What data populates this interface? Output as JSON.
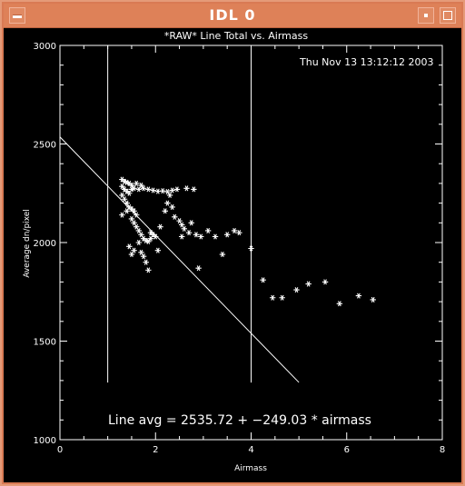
{
  "window": {
    "title": "IDL 0"
  },
  "plot": {
    "timestamp": "Thu Nov 13 13:12:12 2003"
  },
  "chart_data": {
    "type": "scatter",
    "title": "*RAW* Line Total vs. Airmass",
    "xlabel": "Airmass",
    "ylabel": "Average dn/pixel",
    "xlim": [
      0,
      8
    ],
    "ylim": [
      1000,
      3000
    ],
    "xticks": [
      "0",
      "2",
      "4",
      "6",
      "8"
    ],
    "yticks": [
      "1000",
      "1500",
      "2000",
      "2500",
      "3000"
    ],
    "grid": false,
    "marker": "*",
    "fit": {
      "intercept": 2535.72,
      "slope": -249.03,
      "x_range": [
        0,
        5
      ],
      "label": "Line avg = 2535.72 + −249.03 * airmass"
    },
    "vlines": [
      1,
      4
    ],
    "vline_y_range": [
      1290,
      3000
    ],
    "points": [
      [
        1.3,
        2320
      ],
      [
        1.35,
        2310
      ],
      [
        1.4,
        2305
      ],
      [
        1.45,
        2300
      ],
      [
        1.5,
        2290
      ],
      [
        1.6,
        2300
      ],
      [
        1.7,
        2290
      ],
      [
        1.3,
        2285
      ],
      [
        1.35,
        2270
      ],
      [
        1.4,
        2260
      ],
      [
        1.45,
        2250
      ],
      [
        1.5,
        2270
      ],
      [
        1.55,
        2275
      ],
      [
        1.65,
        2270
      ],
      [
        1.75,
        2275
      ],
      [
        1.85,
        2270
      ],
      [
        1.95,
        2265
      ],
      [
        2.05,
        2260
      ],
      [
        2.15,
        2262
      ],
      [
        2.25,
        2258
      ],
      [
        2.35,
        2265
      ],
      [
        2.45,
        2270
      ],
      [
        2.65,
        2275
      ],
      [
        2.8,
        2270
      ],
      [
        1.3,
        2240
      ],
      [
        1.35,
        2220
      ],
      [
        1.4,
        2200
      ],
      [
        1.45,
        2180
      ],
      [
        1.5,
        2170
      ],
      [
        1.55,
        2160
      ],
      [
        1.6,
        2140
      ],
      [
        1.3,
        2140
      ],
      [
        1.4,
        2160
      ],
      [
        1.5,
        2120
      ],
      [
        1.55,
        2100
      ],
      [
        1.6,
        2080
      ],
      [
        1.65,
        2060
      ],
      [
        1.7,
        2040
      ],
      [
        1.75,
        2020
      ],
      [
        1.8,
        2010
      ],
      [
        1.85,
        2005
      ],
      [
        1.9,
        2050
      ],
      [
        1.95,
        2040
      ],
      [
        2.0,
        2030
      ],
      [
        2.1,
        2080
      ],
      [
        2.2,
        2160
      ],
      [
        2.25,
        2200
      ],
      [
        2.3,
        2240
      ],
      [
        2.35,
        2180
      ],
      [
        2.4,
        2130
      ],
      [
        2.5,
        2110
      ],
      [
        2.55,
        2090
      ],
      [
        2.6,
        2070
      ],
      [
        2.7,
        2050
      ],
      [
        2.75,
        2100
      ],
      [
        2.85,
        2040
      ],
      [
        2.95,
        2030
      ],
      [
        3.1,
        2060
      ],
      [
        3.25,
        2030
      ],
      [
        3.5,
        2040
      ],
      [
        3.65,
        2060
      ],
      [
        3.75,
        2050
      ],
      [
        4.0,
        1970
      ],
      [
        1.45,
        1980
      ],
      [
        1.5,
        1940
      ],
      [
        1.55,
        1960
      ],
      [
        1.65,
        2000
      ],
      [
        1.7,
        1950
      ],
      [
        1.75,
        1930
      ],
      [
        1.8,
        1900
      ],
      [
        1.85,
        1860
      ],
      [
        1.9,
        2020
      ],
      [
        2.05,
        1960
      ],
      [
        2.55,
        2030
      ],
      [
        2.9,
        1870
      ],
      [
        3.4,
        1940
      ],
      [
        4.25,
        1810
      ],
      [
        4.45,
        1720
      ],
      [
        4.65,
        1720
      ],
      [
        4.95,
        1760
      ],
      [
        5.2,
        1790
      ],
      [
        5.55,
        1800
      ],
      [
        5.85,
        1690
      ],
      [
        6.25,
        1730
      ],
      [
        6.55,
        1710
      ]
    ]
  }
}
